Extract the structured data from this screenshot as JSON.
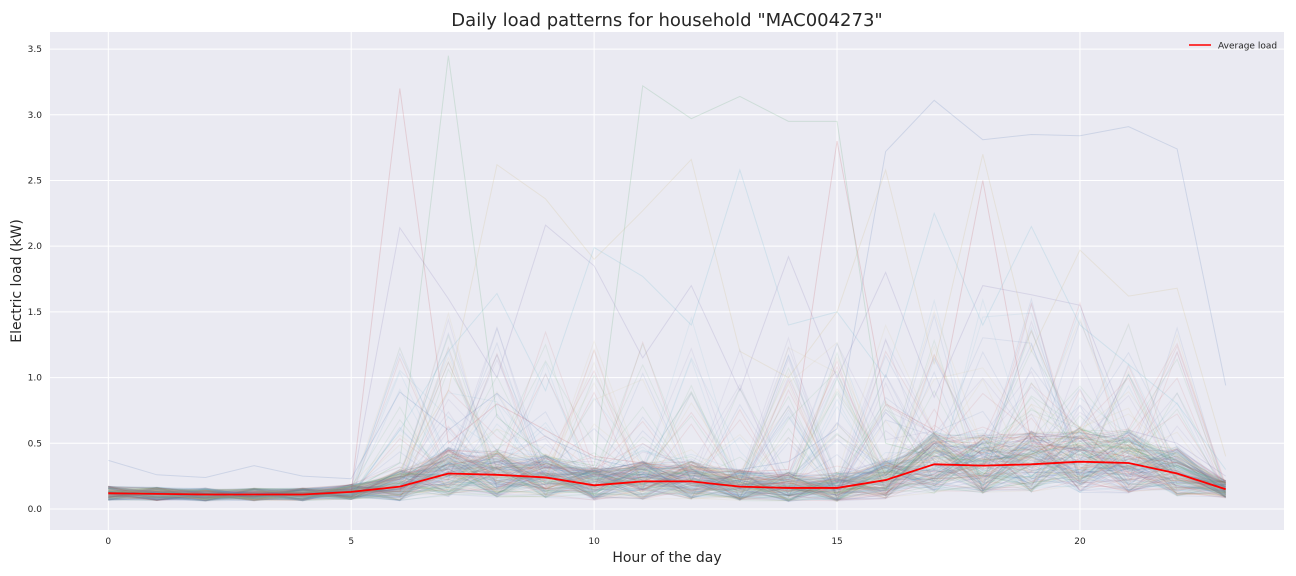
{
  "chart_data": {
    "type": "line",
    "title": "Daily load patterns for household \"MAC004273\"",
    "xlabel": "Hour of the day",
    "ylabel": "Electric load (kW)",
    "xlim": [
      -1.2,
      24.2
    ],
    "ylim": [
      -0.16,
      3.63
    ],
    "x_ticks": [
      0,
      5,
      10,
      15,
      20
    ],
    "y_ticks": [
      0.0,
      0.5,
      1.0,
      1.5,
      2.0,
      2.5,
      3.0,
      3.5
    ],
    "x_tick_labels": [
      "0",
      "5",
      "10",
      "15",
      "20"
    ],
    "y_tick_labels": [
      "0.0",
      "0.5",
      "1.0",
      "1.5",
      "2.0",
      "2.5",
      "3.0",
      "3.5"
    ],
    "grid": true,
    "legend_position": "top-right",
    "x": [
      0,
      1,
      2,
      3,
      4,
      5,
      6,
      7,
      8,
      9,
      10,
      11,
      12,
      13,
      14,
      15,
      16,
      17,
      18,
      19,
      20,
      21,
      22,
      23
    ],
    "series": [
      {
        "name": "Average load",
        "color": "#ff0000",
        "values": [
          0.12,
          0.115,
          0.11,
          0.11,
          0.11,
          0.13,
          0.17,
          0.27,
          0.26,
          0.24,
          0.18,
          0.21,
          0.21,
          0.17,
          0.16,
          0.16,
          0.22,
          0.34,
          0.33,
          0.34,
          0.36,
          0.35,
          0.27,
          0.15
        ]
      }
    ],
    "daily_profiles_visible": [
      [
        0.37,
        0.26,
        0.24,
        0.33,
        0.25,
        0.23,
        0.89,
        0.6,
        0.88,
        0.55,
        0.38,
        0.3,
        0.32,
        0.3,
        0.36,
        0.61,
        2.72,
        3.11,
        2.81,
        2.85,
        2.84,
        2.91,
        2.74,
        0.94
      ],
      [
        0.13,
        0.11,
        0.12,
        0.1,
        0.11,
        0.14,
        0.35,
        3.45,
        0.7,
        0.4,
        0.33,
        3.22,
        2.97,
        3.14,
        2.95,
        2.95,
        0.5,
        0.4,
        0.36,
        0.42,
        0.5,
        0.46,
        0.33,
        0.2
      ],
      [
        0.11,
        0.12,
        0.1,
        0.11,
        0.1,
        0.13,
        3.2,
        0.5,
        0.8,
        0.6,
        0.4,
        0.35,
        0.3,
        0.28,
        0.3,
        2.8,
        0.8,
        0.6,
        2.5,
        0.5,
        0.45,
        0.4,
        0.35,
        0.2
      ],
      [
        0.15,
        0.13,
        0.13,
        0.12,
        0.12,
        0.14,
        2.14,
        1.6,
        1.0,
        2.16,
        1.85,
        1.15,
        1.7,
        0.9,
        1.92,
        1.0,
        1.8,
        0.85,
        1.7,
        1.63,
        1.55,
        0.6,
        0.5,
        0.25
      ],
      [
        0.1,
        0.1,
        0.09,
        0.09,
        0.09,
        0.12,
        0.3,
        0.9,
        2.62,
        2.36,
        1.9,
        2.27,
        2.66,
        1.2,
        1.0,
        1.5,
        2.58,
        1.1,
        2.7,
        1.2,
        1.97,
        1.62,
        1.68,
        0.4
      ],
      [
        0.12,
        0.1,
        0.1,
        0.1,
        0.1,
        0.11,
        0.6,
        1.2,
        1.64,
        0.9,
        1.99,
        1.77,
        1.4,
        2.58,
        1.4,
        1.5,
        1.0,
        2.25,
        1.4,
        2.15,
        1.4,
        1.1,
        0.8,
        0.3
      ]
    ]
  },
  "legend": {
    "label": "Average load",
    "color": "#ff0000"
  },
  "colors": {
    "plot_background": "#eaeaf2",
    "grid": "#ffffff",
    "figure_background": "#ffffff"
  }
}
